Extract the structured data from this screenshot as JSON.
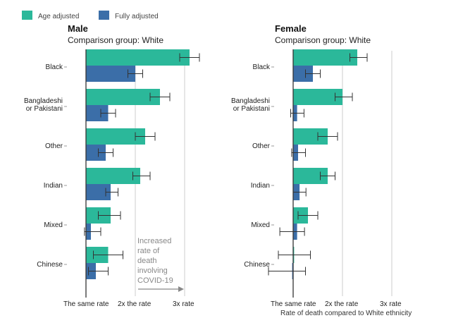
{
  "legend": [
    {
      "label": "Age adjusted",
      "color": "#2bb89a"
    },
    {
      "label": "Fully adjusted",
      "color": "#3b6ea8"
    }
  ],
  "colors": {
    "age": "#2bb89a",
    "full": "#3b6ea8",
    "error": "#333333",
    "axis": "#333333",
    "grid": "#cccccc"
  },
  "annotation": {
    "lines": [
      "Increased",
      "rate of",
      "death",
      "involving",
      "COVID-19"
    ]
  },
  "chart_data": [
    {
      "type": "bar",
      "title": "Male",
      "subtitle": "Comparison group: White",
      "categories": [
        [
          "Black"
        ],
        [
          "Bangladeshi",
          "or Pakistani"
        ],
        [
          "Other"
        ],
        [
          "Indian"
        ],
        [
          "Mixed"
        ],
        [
          "Chinese"
        ]
      ],
      "xticks": [
        {
          "value": 1,
          "label": "The same rate"
        },
        {
          "value": 2,
          "label": "2x the rate"
        },
        {
          "value": 3,
          "label": "3x rate"
        }
      ],
      "xlim": [
        0.83,
        3.4
      ],
      "series": [
        {
          "name": "Age adjusted",
          "values": [
            3.1,
            2.5,
            2.2,
            2.1,
            1.5,
            1.45
          ],
          "error_low": [
            2.9,
            2.3,
            2.0,
            1.95,
            1.25,
            1.15
          ],
          "error_high": [
            3.3,
            2.7,
            2.4,
            2.3,
            1.7,
            1.75
          ]
        },
        {
          "name": "Fully adjusted",
          "values": [
            2.0,
            1.45,
            1.4,
            1.5,
            1.1,
            1.2
          ],
          "error_low": [
            1.85,
            1.3,
            1.25,
            1.4,
            0.97,
            1.05
          ],
          "error_high": [
            2.15,
            1.6,
            1.55,
            1.65,
            1.3,
            1.45
          ]
        }
      ]
    },
    {
      "type": "bar",
      "title": "Female",
      "subtitle": "Comparison group: White",
      "categories": [
        [
          "Black"
        ],
        [
          "Bangladeshi",
          "or Pakistani"
        ],
        [
          "Other"
        ],
        [
          "Indian"
        ],
        [
          "Mixed"
        ],
        [
          "Chinese"
        ]
      ],
      "xticks": [
        {
          "value": 1,
          "label": "The same rate"
        },
        {
          "value": 2,
          "label": "2x the rate"
        },
        {
          "value": 3,
          "label": "3x rate"
        }
      ],
      "xlim": [
        0.5,
        3.4
      ],
      "xlabel": "Rate of death compared to White ethnicity",
      "series": [
        {
          "name": "Age adjusted",
          "values": [
            2.3,
            2.0,
            1.7,
            1.7,
            1.3,
            1.02
          ],
          "error_low": [
            2.15,
            1.85,
            1.5,
            1.55,
            1.1,
            0.7
          ],
          "error_high": [
            2.5,
            2.2,
            1.9,
            1.85,
            1.5,
            1.35
          ]
        },
        {
          "name": "Fully adjusted",
          "values": [
            1.4,
            1.08,
            1.1,
            1.13,
            1.08,
            0.98
          ],
          "error_low": [
            1.25,
            0.95,
            0.97,
            1.0,
            0.73,
            0.5
          ],
          "error_high": [
            1.55,
            1.22,
            1.25,
            1.26,
            1.23,
            1.25
          ]
        }
      ]
    }
  ]
}
